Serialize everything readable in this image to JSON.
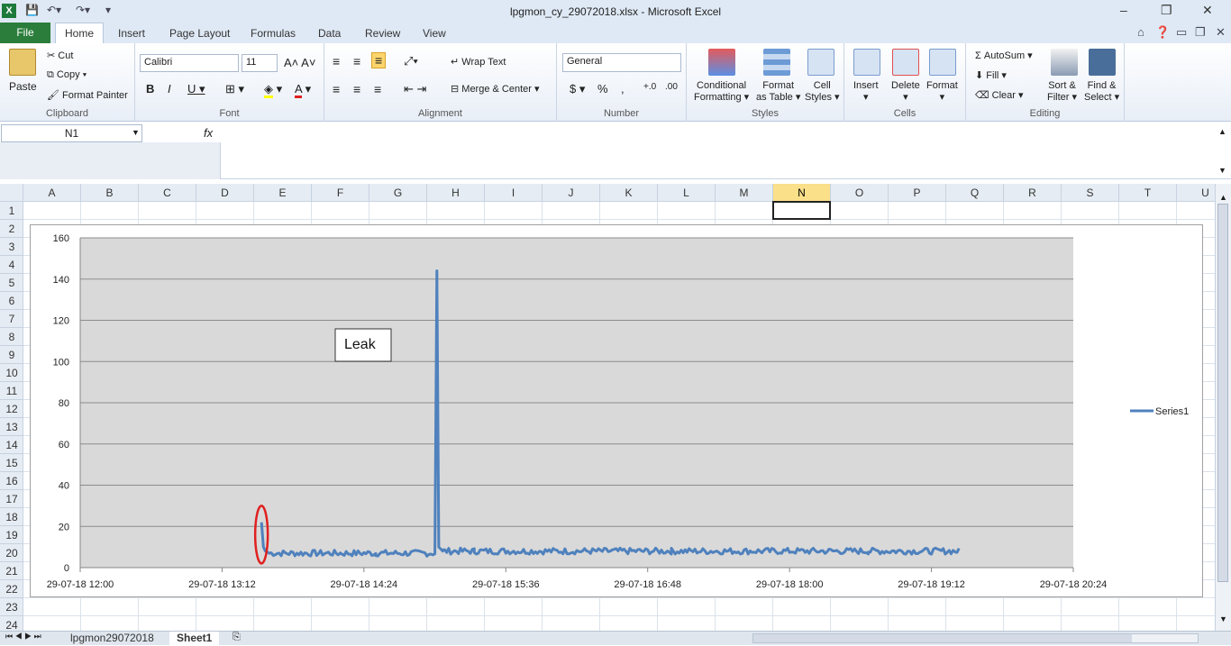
{
  "window": {
    "title": "lpgmon_cy_29072018.xlsx - Microsoft Excel"
  },
  "ribbon_tabs": [
    "File",
    "Home",
    "Insert",
    "Page Layout",
    "Formulas",
    "Data",
    "Review",
    "View"
  ],
  "clipboard": {
    "paste": "Paste",
    "cut": "Cut",
    "copy": "Copy",
    "format_painter": "Format Painter",
    "label": "Clipboard"
  },
  "font": {
    "name": "Calibri",
    "size": "11",
    "label": "Font"
  },
  "alignment": {
    "wrap": "Wrap Text",
    "merge": "Merge & Center",
    "label": "Alignment"
  },
  "number": {
    "format": "General",
    "label": "Number"
  },
  "styles": {
    "conditional": "Conditional",
    "conditional2": "Formatting",
    "format_table": "Format",
    "format_table2": "as Table",
    "cell_styles": "Cell",
    "cell_styles2": "Styles",
    "label": "Styles"
  },
  "cells": {
    "insert": "Insert",
    "delete": "Delete",
    "format": "Format",
    "label": "Cells"
  },
  "editing": {
    "autosum": "AutoSum",
    "fill": "Fill",
    "clear": "Clear",
    "sort": "Sort &",
    "sort2": "Filter",
    "find": "Find &",
    "find2": "Select",
    "label": "Editing"
  },
  "name_box": "N1",
  "columns": [
    "A",
    "B",
    "C",
    "D",
    "E",
    "F",
    "G",
    "H",
    "I",
    "J",
    "K",
    "L",
    "M",
    "N",
    "O",
    "P",
    "Q",
    "R",
    "S",
    "T",
    "U"
  ],
  "rows": [
    "1",
    "2",
    "3",
    "4",
    "5",
    "6",
    "7",
    "8",
    "9",
    "10",
    "11",
    "12",
    "13",
    "14",
    "15",
    "16",
    "17",
    "18",
    "19",
    "20",
    "21",
    "22",
    "23",
    "24"
  ],
  "sheets": [
    "lpgmon29072018",
    "Sheet1"
  ],
  "chart_data": {
    "type": "line",
    "series": [
      {
        "name": "Series1",
        "color": "#4f81bd"
      }
    ],
    "yticks": [
      "0",
      "20",
      "40",
      "60",
      "80",
      "100",
      "120",
      "140",
      "160"
    ],
    "ylim": [
      0,
      160
    ],
    "xticks": [
      "29-07-18 12:00",
      "29-07-18 13:12",
      "29-07-18 14:24",
      "29-07-18 15:36",
      "29-07-18 16:48",
      "29-07-18 18:00",
      "29-07-18 19:12",
      "29-07-18 20:24"
    ],
    "xlim_minutes_from_start": [
      0,
      504
    ],
    "points": [
      [
        92,
        22
      ],
      [
        93,
        10
      ],
      [
        94,
        8
      ],
      [
        96,
        7
      ],
      [
        150,
        7
      ],
      [
        180,
        7
      ],
      [
        181,
        144
      ],
      [
        182,
        10
      ],
      [
        184,
        8
      ],
      [
        200,
        8
      ],
      [
        300,
        8
      ],
      [
        400,
        8
      ],
      [
        446,
        8
      ]
    ],
    "annotation": "Leak",
    "legend": "right",
    "plot_bg": "#d9d9d9"
  }
}
